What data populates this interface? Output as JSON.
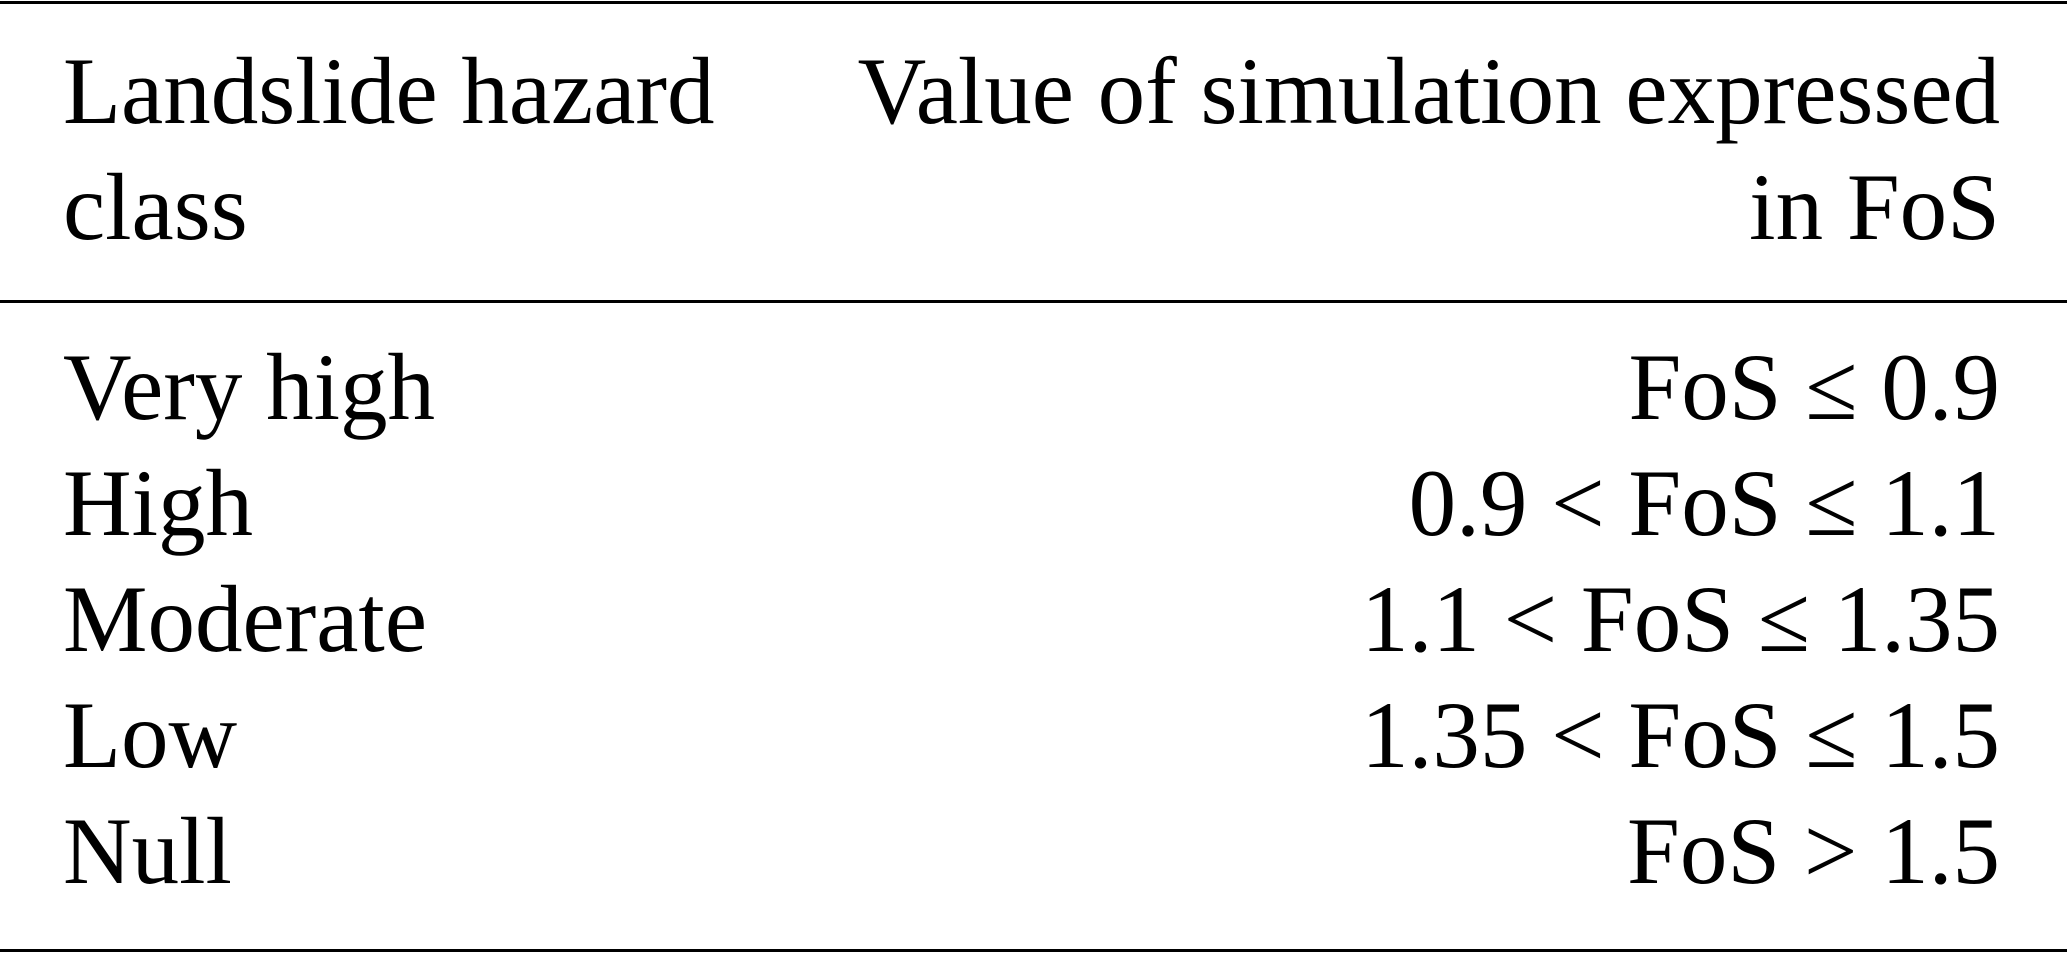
{
  "table": {
    "header": [
      "Landslide hazard class",
      "Value of simulation expressed in FoS"
    ],
    "rows": [
      [
        "Very high",
        "FoS ≤ 0.9"
      ],
      [
        "High",
        "0.9 < FoS ≤ 1.1"
      ],
      [
        "Moderate",
        "1.1 < FoS ≤ 1.35"
      ],
      [
        "Low",
        "1.35 < FoS ≤ 1.5"
      ],
      [
        "Null",
        "FoS > 1.5"
      ]
    ]
  }
}
